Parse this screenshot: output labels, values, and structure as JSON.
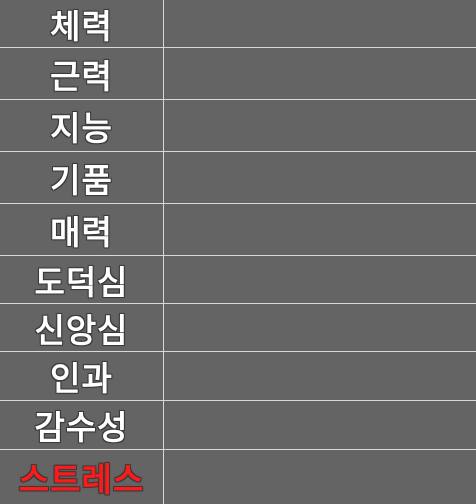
{
  "stats": [
    {
      "label": "체력",
      "alert": false
    },
    {
      "label": "근력",
      "alert": false
    },
    {
      "label": "지능",
      "alert": false
    },
    {
      "label": "기품",
      "alert": false
    },
    {
      "label": "매력",
      "alert": false
    },
    {
      "label": "도덕심",
      "alert": false
    },
    {
      "label": "신앙심",
      "alert": false
    },
    {
      "label": "인과",
      "alert": false
    },
    {
      "label": "감수성",
      "alert": false
    },
    {
      "label": "스트레스",
      "alert": true
    }
  ],
  "colors": {
    "background": "#646464",
    "divider": "#d9d9d9",
    "label_text": "#ffffff",
    "alert_text": "#ff1a1a"
  }
}
